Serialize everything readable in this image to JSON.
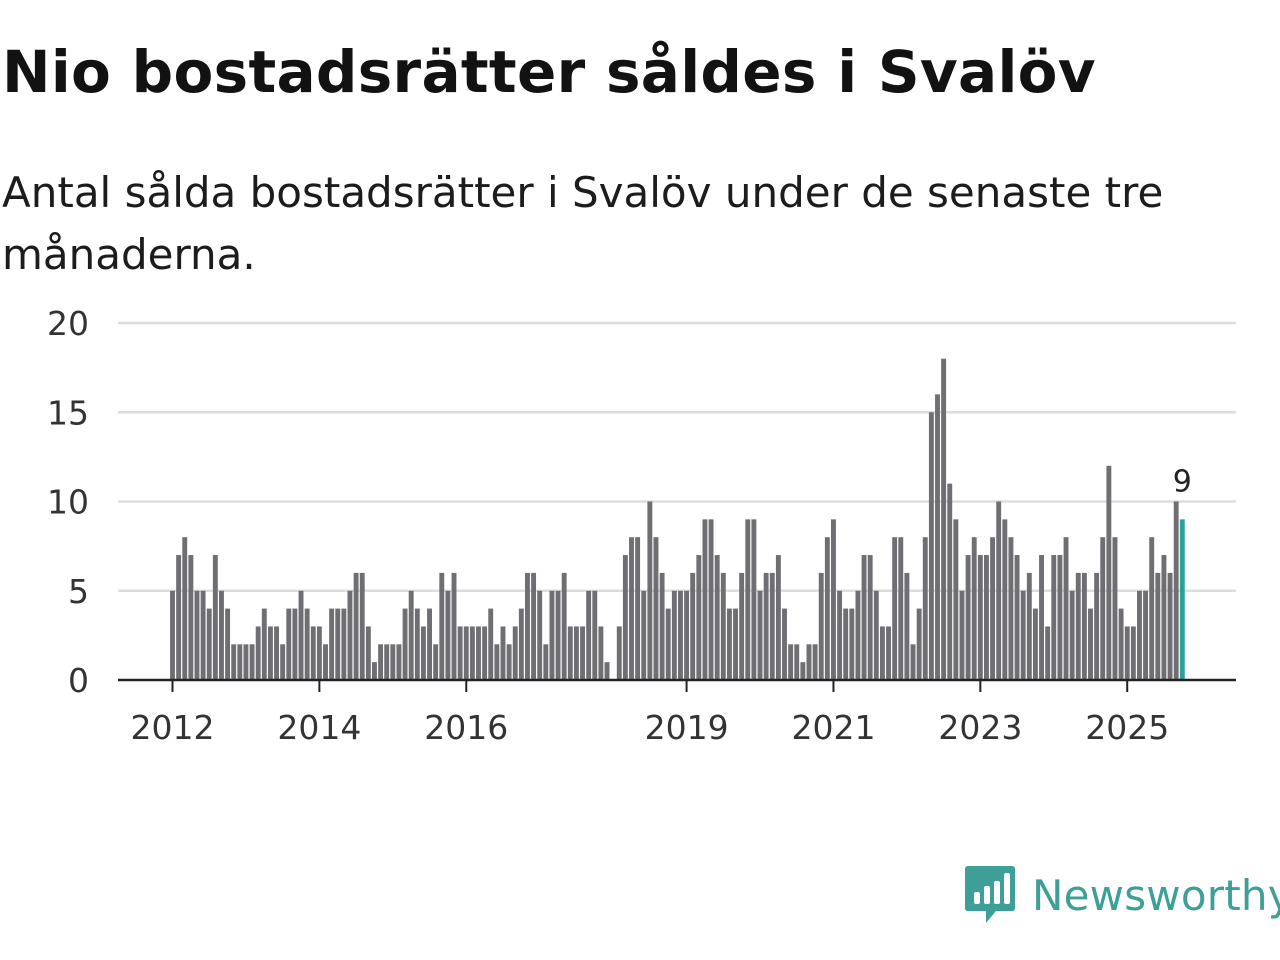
{
  "header": {
    "title": "Nio bostadsrätter såldes i Svalöv",
    "subtitle": "Antal sålda bostadsrätter i Svalöv under de senaste tre månaderna."
  },
  "brand": {
    "name": "Newsworthy",
    "color": "#3d9f97",
    "icon": "newsworthy-logo-icon"
  },
  "colors": {
    "bar": "#6e6e73",
    "highlight": "#28a39a",
    "grid": "#dddddd",
    "axis": "#222222"
  },
  "chart_data": {
    "type": "bar",
    "title": "Nio bostadsrätter såldes i Svalöv",
    "xlabel": "",
    "ylabel": "",
    "ylim": [
      0,
      20
    ],
    "yticks": [
      0,
      5,
      10,
      15,
      20
    ],
    "grid": true,
    "start_month": "2012-01",
    "xtick_labels": [
      {
        "label": "2012",
        "index": 0
      },
      {
        "label": "2014",
        "index": 24
      },
      {
        "label": "2016",
        "index": 48
      },
      {
        "label": "2019",
        "index": 84
      },
      {
        "label": "2021",
        "index": 108
      },
      {
        "label": "2023",
        "index": 132
      },
      {
        "label": "2025",
        "index": 156
      }
    ],
    "highlight_index": 165,
    "highlight_label": "9",
    "values": [
      5,
      7,
      8,
      7,
      5,
      5,
      4,
      7,
      5,
      4,
      2,
      2,
      2,
      2,
      3,
      4,
      3,
      3,
      2,
      4,
      4,
      5,
      4,
      3,
      3,
      2,
      4,
      4,
      4,
      5,
      6,
      6,
      3,
      1,
      2,
      2,
      2,
      2,
      4,
      5,
      4,
      3,
      4,
      2,
      6,
      5,
      6,
      3,
      3,
      3,
      3,
      3,
      4,
      2,
      3,
      2,
      3,
      4,
      6,
      6,
      5,
      2,
      5,
      5,
      6,
      3,
      3,
      3,
      5,
      5,
      3,
      1,
      0,
      3,
      7,
      8,
      8,
      5,
      10,
      8,
      6,
      4,
      5,
      5,
      5,
      6,
      7,
      9,
      9,
      7,
      6,
      4,
      4,
      6,
      9,
      9,
      5,
      6,
      6,
      7,
      4,
      2,
      2,
      1,
      2,
      2,
      6,
      8,
      9,
      5,
      4,
      4,
      5,
      7,
      7,
      5,
      3,
      3,
      8,
      8,
      6,
      2,
      4,
      8,
      15,
      16,
      18,
      11,
      9,
      5,
      7,
      8,
      7,
      7,
      8,
      10,
      9,
      8,
      7,
      5,
      6,
      4,
      7,
      3,
      7,
      7,
      8,
      5,
      6,
      6,
      4,
      6,
      8,
      12,
      8,
      4,
      3,
      3,
      5,
      5,
      8,
      6,
      7,
      6,
      10,
      9
    ]
  }
}
